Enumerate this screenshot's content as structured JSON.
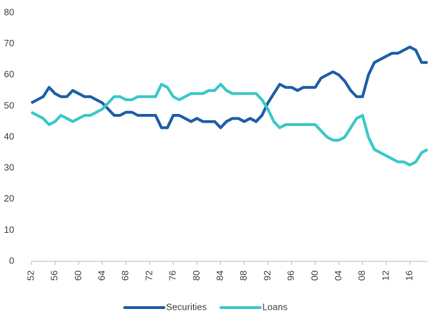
{
  "chart_data": {
    "type": "line",
    "x": [
      1952,
      1953,
      1954,
      1955,
      1956,
      1957,
      1958,
      1959,
      1960,
      1961,
      1962,
      1963,
      1964,
      1965,
      1966,
      1967,
      1968,
      1969,
      1970,
      1971,
      1972,
      1973,
      1974,
      1975,
      1976,
      1977,
      1978,
      1979,
      1980,
      1981,
      1982,
      1983,
      1984,
      1985,
      1986,
      1987,
      1988,
      1989,
      1990,
      1991,
      1992,
      1993,
      1994,
      1995,
      1996,
      1997,
      1998,
      1999,
      2000,
      2001,
      2002,
      2003,
      2004,
      2005,
      2006,
      2007,
      2008,
      2009,
      2010,
      2011,
      2012,
      2013,
      2014,
      2015,
      2016,
      2017,
      2018,
      2019
    ],
    "series": [
      {
        "name": "Securities",
        "color": "#1f5fa8",
        "values": [
          51,
          52,
          53,
          56,
          54,
          53,
          53,
          55,
          54,
          53,
          53,
          52,
          51,
          49,
          47,
          47,
          48,
          48,
          47,
          47,
          47,
          47,
          43,
          43,
          47,
          47,
          46,
          45,
          46,
          45,
          45,
          45,
          43,
          45,
          46,
          46,
          45,
          46,
          45,
          47,
          51,
          54,
          57,
          56,
          56,
          55,
          56,
          56,
          56,
          59,
          60,
          61,
          60,
          58,
          55,
          53,
          53,
          60,
          64,
          65,
          66,
          67,
          67,
          68,
          69,
          68,
          64,
          64
        ]
      },
      {
        "name": "Loans",
        "color": "#3cc8c8",
        "values": [
          48,
          47,
          46,
          44,
          45,
          47,
          46,
          45,
          46,
          47,
          47,
          48,
          49,
          51,
          53,
          53,
          52,
          52,
          53,
          53,
          53,
          53,
          57,
          56,
          53,
          52,
          53,
          54,
          54,
          54,
          55,
          55,
          57,
          55,
          54,
          54,
          54,
          54,
          54,
          52,
          49,
          45,
          43,
          44,
          44,
          44,
          44,
          44,
          44,
          42,
          40,
          39,
          39,
          40,
          43,
          46,
          47,
          40,
          36,
          35,
          34,
          33,
          32,
          32,
          31,
          32,
          35,
          36
        ]
      }
    ],
    "xlim": [
      1952,
      2019
    ],
    "xticks": [
      {
        "value": 1952,
        "label": "52"
      },
      {
        "value": 1956,
        "label": "56"
      },
      {
        "value": 1960,
        "label": "60"
      },
      {
        "value": 1964,
        "label": "64"
      },
      {
        "value": 1968,
        "label": "68"
      },
      {
        "value": 1972,
        "label": "72"
      },
      {
        "value": 1976,
        "label": "76"
      },
      {
        "value": 1980,
        "label": "80"
      },
      {
        "value": 1984,
        "label": "84"
      },
      {
        "value": 1988,
        "label": "88"
      },
      {
        "value": 1992,
        "label": "92"
      },
      {
        "value": 1996,
        "label": "96"
      },
      {
        "value": 2000,
        "label": "00"
      },
      {
        "value": 2004,
        "label": "04"
      },
      {
        "value": 2008,
        "label": "08"
      },
      {
        "value": 2012,
        "label": "12"
      },
      {
        "value": 2016,
        "label": "16"
      }
    ],
    "ylim": [
      0,
      80
    ],
    "yticks": [
      0,
      10,
      20,
      30,
      40,
      50,
      60,
      70,
      80
    ],
    "legend": "bottom"
  }
}
